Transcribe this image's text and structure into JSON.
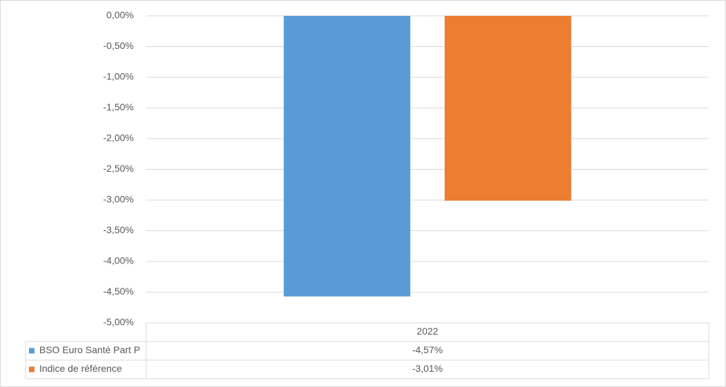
{
  "chart_data": {
    "type": "bar",
    "categories": [
      "2022"
    ],
    "series": [
      {
        "name": "BSO Euro Santé Part P",
        "color": "#5b9bd5",
        "values": [
          -4.57
        ],
        "value_labels": [
          "-4,57%"
        ]
      },
      {
        "name": "Indice de référence",
        "color": "#ed7d31",
        "values": [
          -3.01
        ],
        "value_labels": [
          "-3,01%"
        ]
      }
    ],
    "ylim": [
      -5,
      0
    ],
    "yticks": [
      {
        "value": 0,
        "label": "0,00%"
      },
      {
        "value": -0.5,
        "label": "-0,50%"
      },
      {
        "value": -1,
        "label": "-1,00%"
      },
      {
        "value": -1.5,
        "label": "-1,50%"
      },
      {
        "value": -2,
        "label": "-2,00%"
      },
      {
        "value": -2.5,
        "label": "-2,50%"
      },
      {
        "value": -3,
        "label": "-3,00%"
      },
      {
        "value": -3.5,
        "label": "-3,50%"
      },
      {
        "value": -4,
        "label": "-4,00%"
      },
      {
        "value": -4.5,
        "label": "-4,50%"
      },
      {
        "value": -5,
        "label": "-5,00%"
      }
    ],
    "grid": true,
    "data_table": true
  }
}
